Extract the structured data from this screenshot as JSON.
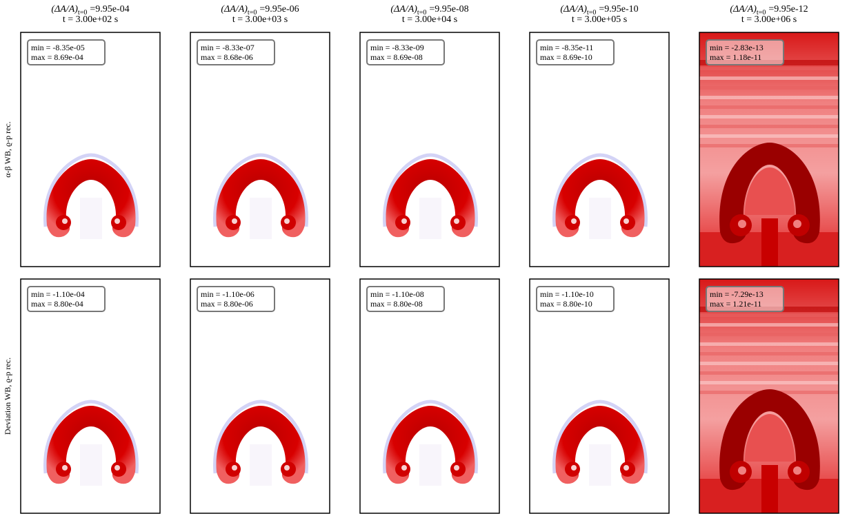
{
  "header": {
    "columns": [
      {
        "ratio": "(ΔA/A)",
        "subscript": "t=0",
        "amplitude": "=9.95e-04",
        "time": "t = 3.00e+02 s"
      },
      {
        "ratio": "(ΔA/A)",
        "subscript": "t=0",
        "amplitude": "=9.95e-06",
        "time": "t = 3.00e+03 s"
      },
      {
        "ratio": "(ΔA/A)",
        "subscript": "t=0",
        "amplitude": "=9.95e-08",
        "time": "t = 3.00e+04 s"
      },
      {
        "ratio": "(ΔA/A)",
        "subscript": "t=0",
        "amplitude": "=9.95e-10",
        "time": "t = 3.00e+05 s"
      },
      {
        "ratio": "(ΔA/A)",
        "subscript": "t=0",
        "amplitude": "=9.95e-12",
        "time": "t = 3.00e+06 s"
      }
    ]
  },
  "rows": [
    {
      "label": "α-β WB, ϱ-p rec.",
      "panels": [
        {
          "min": "min = -8.35e-05",
          "max": "max = 8.69e-04"
        },
        {
          "min": "min = -8.33e-07",
          "max": "max = 8.68e-06"
        },
        {
          "min": "min = -8.33e-09",
          "max": "max = 8.69e-08"
        },
        {
          "min": "min = -8.35e-11",
          "max": "max = 8.69e-10"
        },
        {
          "min": "min = -2.83e-13",
          "max": "max = 1.18e-11"
        }
      ]
    },
    {
      "label": "Deviation WB, ϱ-p rec.",
      "panels": [
        {
          "min": "min = -1.10e-04",
          "max": "max = 8.80e-04"
        },
        {
          "min": "min = -1.10e-06",
          "max": "max = 8.80e-06"
        },
        {
          "min": "min = -1.10e-08",
          "max": "max = 8.80e-08"
        },
        {
          "min": "min = -1.10e-10",
          "max": "max = 8.80e-10"
        },
        {
          "min": "min = -7.29e-13",
          "max": "max = 1.21e-11"
        }
      ]
    }
  ]
}
